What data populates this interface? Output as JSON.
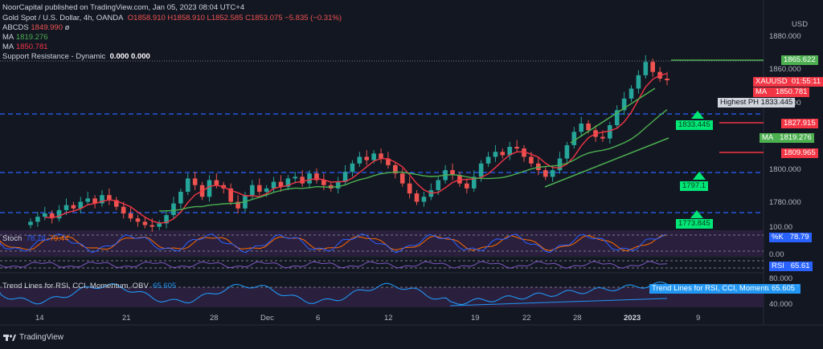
{
  "header": {
    "published_line": "NoorCapital published on TradingView.com, Jan 05, 2023 08:04 UTC+4",
    "symbol": "Gold Spot / U.S. Dollar, 4h, OANDA",
    "ohlc": "O1858.910  H1858.910  L1852.585  C1853.075  −5.835 (−0.31%)",
    "abcds_label": "ABCDS",
    "abcds_value": "1849.990",
    "ma1_label": "MA",
    "ma1_value": "1819.276",
    "ma2_label": "MA",
    "ma2_value": "1850.781",
    "sr_label": "Support Resistance - Dynamic",
    "sr_values": "0.000  0.000"
  },
  "currency": "USD",
  "price_axis": [
    "1880.000",
    "1860.000",
    "1840.000",
    "1800.000",
    "1780.000"
  ],
  "tags": {
    "level_1865": "1865.622",
    "xauusd": "XAUUSD",
    "countdown": "01:55:11",
    "ma_red_label": "MA",
    "ma_red_value": "1850.781",
    "highest_ph": "Highest PH 1833.445",
    "level_1827": "1827.915",
    "ma_green_label": "MA",
    "ma_green_value": "1819.276",
    "level_1809": "1809.965",
    "support_1833": "1833.445",
    "support_1797": "1797.1",
    "support_1773": "1773.845"
  },
  "stoch": {
    "label": "Stoch",
    "k": "78.79",
    "d": "79.44",
    "tag_label": "%K",
    "tag_value": "78.79",
    "axis_100": "100.00",
    "axis_0": "0.00"
  },
  "rsi": {
    "tag_label": "RSI",
    "tag_value": "65.61"
  },
  "trend": {
    "label": "Trend Lines for RSI, CCI, Momentum, OBV",
    "value": "65.605",
    "axis_80": "80.000",
    "axis_40": "40.000"
  },
  "date_axis": [
    "14",
    "21",
    "28",
    "Dec",
    "6",
    "12",
    "19",
    "22",
    "28",
    "2023",
    "9"
  ],
  "branding": "TradingView",
  "colors": {
    "up": "#26a69a",
    "down": "#ef5350",
    "ma_fast": "#f23645",
    "ma_slow": "#4caf50",
    "support": "#00e676",
    "bg": "#131722"
  },
  "chart_data": {
    "type": "candlestick",
    "symbol": "XAUUSD",
    "timeframe": "4h",
    "y_unit": "USD",
    "ylim": [
      1763,
      1887
    ],
    "horizontal_levels": [
      1865.622,
      1833.445,
      1827.915,
      1809.965,
      1797.1,
      1773.845
    ],
    "series": [
      {
        "name": "MA",
        "value_last": 1850.781
      },
      {
        "name": "MA",
        "value_last": 1819.276
      }
    ],
    "candles_close": [
      1768,
      1771,
      1773,
      1770,
      1775,
      1778,
      1776,
      1780,
      1782,
      1779,
      1784,
      1781,
      1777,
      1773,
      1770,
      1768,
      1766,
      1765,
      1767,
      1772,
      1779,
      1786,
      1794,
      1790,
      1783,
      1793,
      1790,
      1788,
      1780,
      1776,
      1784,
      1790,
      1786,
      1788,
      1792,
      1789,
      1794,
      1795,
      1791,
      1797,
      1793,
      1790,
      1788,
      1792,
      1798,
      1803,
      1807,
      1805,
      1809,
      1806,
      1802,
      1797,
      1791,
      1785,
      1780,
      1783,
      1787,
      1793,
      1799,
      1796,
      1791,
      1788,
      1795,
      1803,
      1807,
      1810,
      1808,
      1813,
      1812,
      1807,
      1803,
      1799,
      1795,
      1799,
      1806,
      1814,
      1822,
      1827,
      1823,
      1819,
      1818,
      1826,
      1835,
      1842,
      1848,
      1856,
      1864,
      1858,
      1854,
      1853
    ]
  }
}
